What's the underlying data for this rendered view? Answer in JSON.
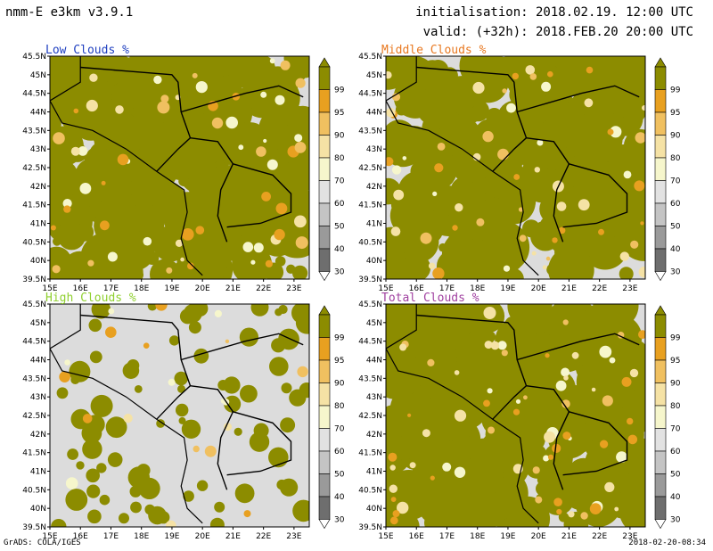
{
  "header": {
    "model": "nmm-E e3km v3.9.1",
    "init": "initialisation: 2018.02.19. 12:00 UTC",
    "valid": "valid: (+32h): 2018.FEB.20 20:00 UTC"
  },
  "footer": {
    "credit": "GrADS: COLA/IGES",
    "stamp": "2018-02-20-08:34"
  },
  "colors": {
    "c99": "#8c8c00",
    "c95": "#e8a020",
    "c90": "#f0c060",
    "c80": "#f5e2a5",
    "c70": "#f6f6cc",
    "c60": "#e2e2e2",
    "c50": "#c4c4c4",
    "c40": "#9a9a9a",
    "c30": "#6e6e6e",
    "c0": "#dcdcdc",
    "title_low": "#2040c0",
    "title_middle": "#e87820",
    "title_high": "#90d030",
    "title_total": "#a040a0"
  },
  "chart_data": [
    {
      "type": "heatmap",
      "title": "Low Clouds %",
      "x_ticks": [
        "15E",
        "16E",
        "17E",
        "18E",
        "19E",
        "20E",
        "21E",
        "22E",
        "23E"
      ],
      "y_ticks": [
        "39.5N",
        "40N",
        "40.5N",
        "41N",
        "41.5N",
        "42N",
        "42.5N",
        "43N",
        "43.5N",
        "44N",
        "44.5N",
        "45N",
        "45.5N"
      ],
      "xlim": [
        15,
        23.5
      ],
      "ylim": [
        39.5,
        45.5
      ],
      "colorbar": [
        30,
        40,
        50,
        60,
        70,
        80,
        90,
        95,
        99
      ],
      "cover": 0.72
    },
    {
      "type": "heatmap",
      "title": "Middle Clouds %",
      "x_ticks": [
        "15E",
        "16E",
        "17E",
        "18E",
        "19E",
        "20E",
        "21E",
        "22E",
        "23E"
      ],
      "y_ticks": [
        "39.5N",
        "40N",
        "40.5N",
        "41N",
        "41.5N",
        "42N",
        "42.5N",
        "43N",
        "43.5N",
        "44N",
        "44.5N",
        "45N",
        "45.5N"
      ],
      "xlim": [
        15,
        23.5
      ],
      "ylim": [
        39.5,
        45.5
      ],
      "colorbar": [
        30,
        40,
        50,
        60,
        70,
        80,
        90,
        95,
        99
      ],
      "cover": 0.7
    },
    {
      "type": "heatmap",
      "title": "High Clouds %",
      "x_ticks": [
        "15E",
        "16E",
        "17E",
        "18E",
        "19E",
        "20E",
        "21E",
        "22E",
        "23E"
      ],
      "y_ticks": [
        "39.5N",
        "40N",
        "40.5N",
        "41N",
        "41.5N",
        "42N",
        "42.5N",
        "43N",
        "43.5N",
        "44N",
        "44.5N",
        "45N",
        "45.5N"
      ],
      "xlim": [
        15,
        23.5
      ],
      "ylim": [
        39.5,
        45.5
      ],
      "colorbar": [
        30,
        40,
        50,
        60,
        70,
        80,
        90,
        95,
        99
      ],
      "cover": 0.15
    },
    {
      "type": "heatmap",
      "title": "Total Clouds %",
      "x_ticks": [
        "15E",
        "16E",
        "17E",
        "18E",
        "19E",
        "20E",
        "21E",
        "22E",
        "23E"
      ],
      "y_ticks": [
        "39.5N",
        "40N",
        "40.5N",
        "41N",
        "41.5N",
        "42N",
        "42.5N",
        "43N",
        "43.5N",
        "44N",
        "44.5N",
        "45N",
        "45.5N"
      ],
      "xlim": [
        15,
        23.5
      ],
      "ylim": [
        39.5,
        45.5
      ],
      "colorbar": [
        30,
        40,
        50,
        60,
        70,
        80,
        90,
        95,
        99
      ],
      "cover": 0.85
    }
  ]
}
